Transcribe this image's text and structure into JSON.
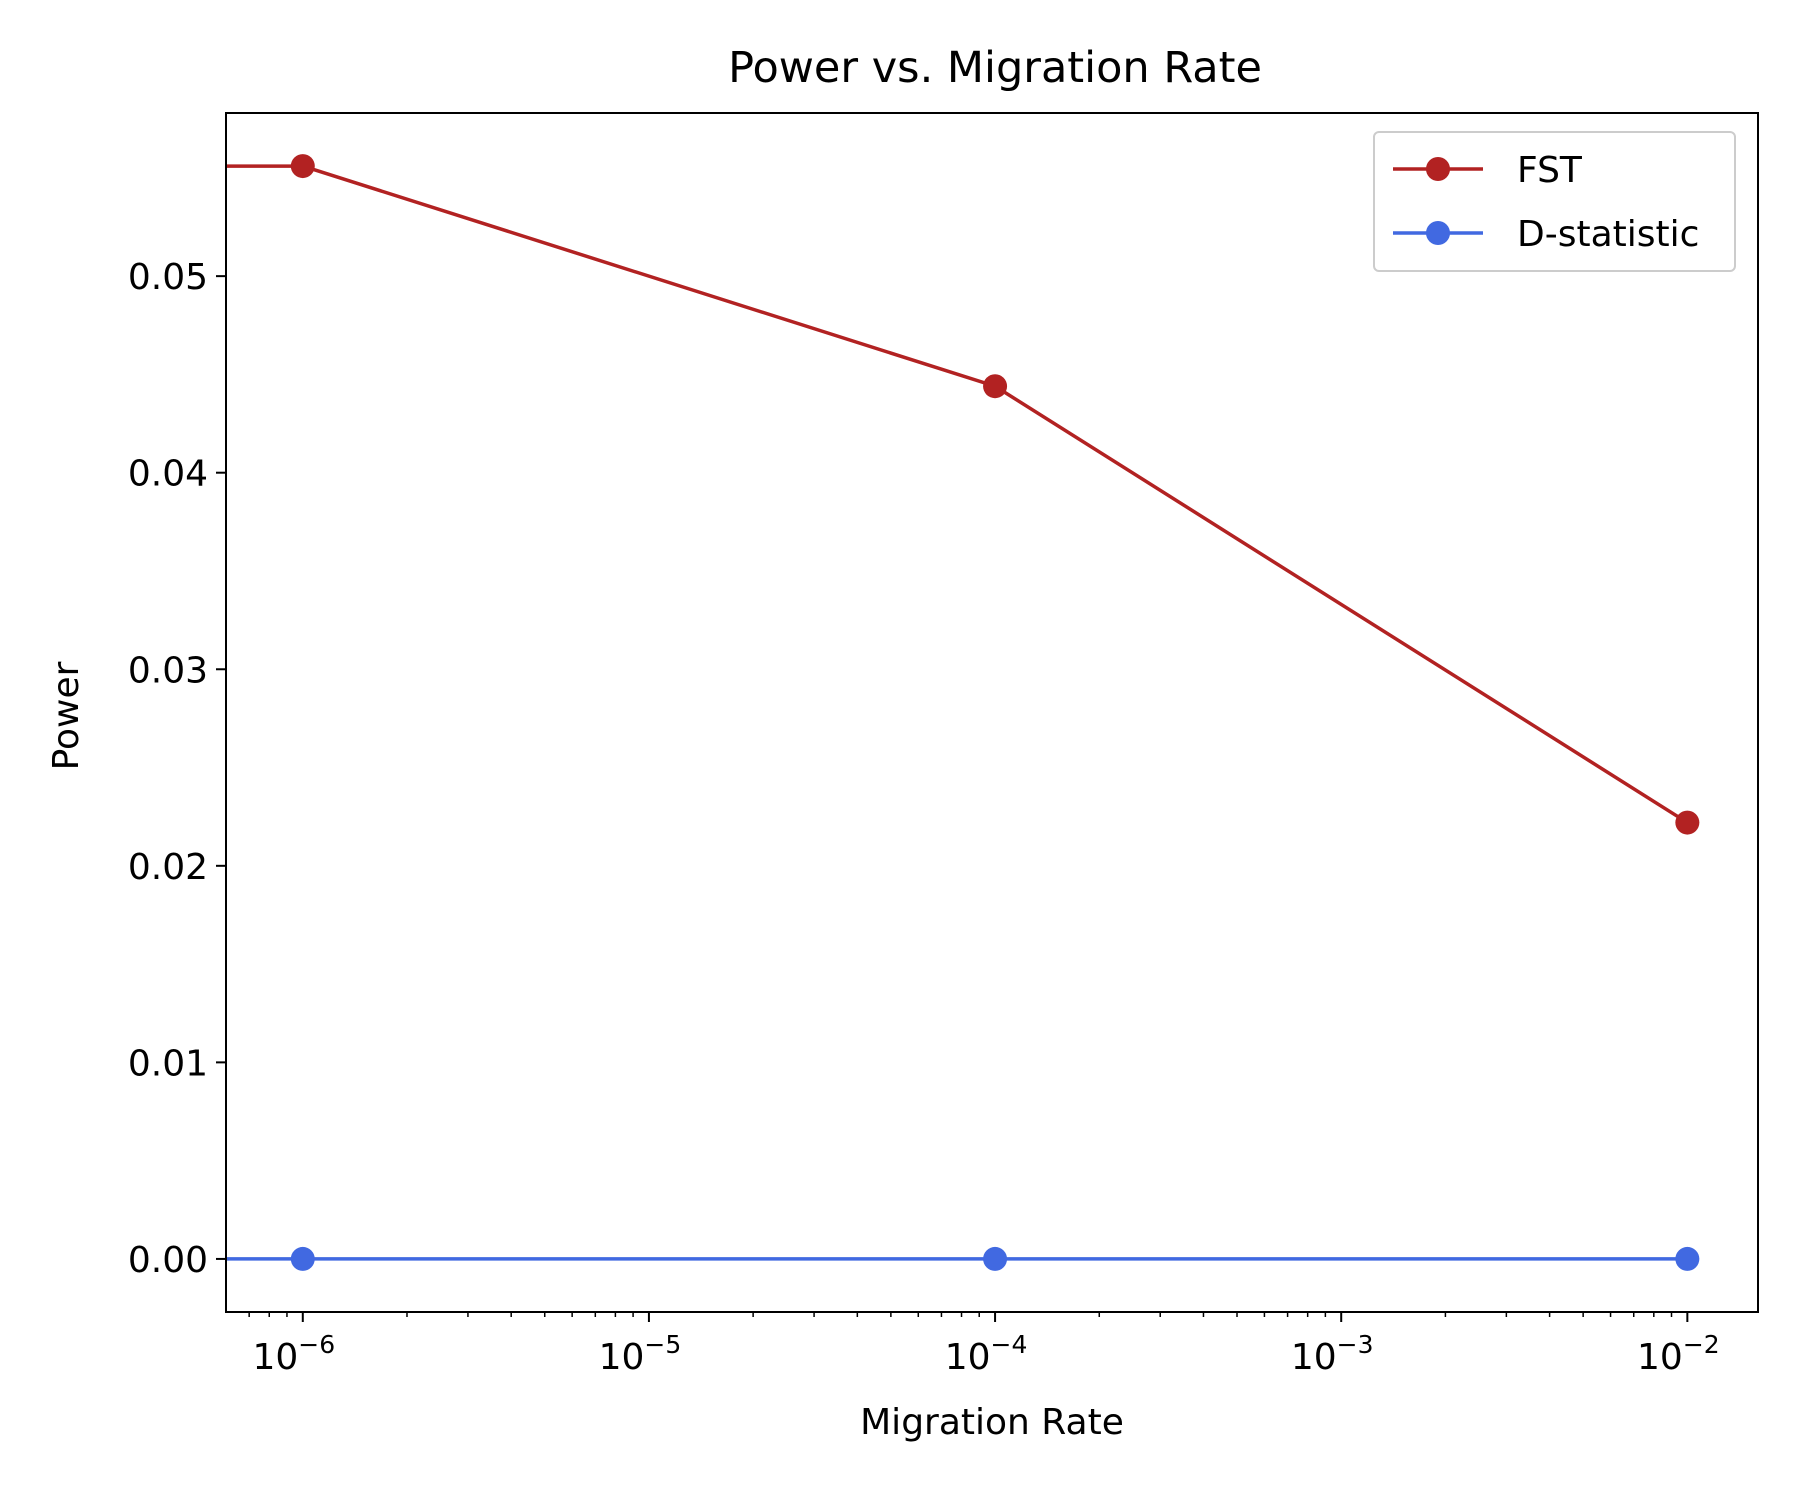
{
  "chart_data": {
    "type": "line",
    "title": "Power vs. Migration Rate",
    "xlabel": "Migration Rate",
    "ylabel": "Power",
    "xscale": "log",
    "xlim": [
      6e-07,
      0.016
    ],
    "ylim": [
      -0.0027,
      0.0583
    ],
    "x_ticks": [
      {
        "value": 1e-06,
        "base": "10",
        "exp": "−6"
      },
      {
        "value": 1e-05,
        "base": "10",
        "exp": "−5"
      },
      {
        "value": 0.0001,
        "base": "10",
        "exp": "−4"
      },
      {
        "value": 0.001,
        "base": "10",
        "exp": "−3"
      },
      {
        "value": 0.01,
        "base": "10",
        "exp": "−2"
      }
    ],
    "y_ticks": [
      {
        "value": 0.0,
        "label": "0.00"
      },
      {
        "value": 0.01,
        "label": "0.01"
      },
      {
        "value": 0.02,
        "label": "0.02"
      },
      {
        "value": 0.03,
        "label": "0.03"
      },
      {
        "value": 0.04,
        "label": "0.04"
      },
      {
        "value": 0.05,
        "label": "0.05"
      }
    ],
    "grid": false,
    "legend": {
      "position": "top-right"
    },
    "series": [
      {
        "name": "FST",
        "color": "#b22222",
        "points": [
          [
            0,
            0.0556
          ],
          [
            1e-06,
            0.0556
          ],
          [
            0.0001,
            0.0444
          ],
          [
            0.01,
            0.0222
          ]
        ],
        "markers": [
          [
            1e-06,
            0.0556
          ],
          [
            0.0001,
            0.0444
          ],
          [
            0.01,
            0.0222
          ]
        ]
      },
      {
        "name": "D-statistic",
        "color": "#4169e1",
        "points": [
          [
            0,
            0.0
          ],
          [
            1e-06,
            0.0
          ],
          [
            0.0001,
            0.0
          ],
          [
            0.01,
            0.0
          ]
        ],
        "markers": [
          [
            1e-06,
            0.0
          ],
          [
            0.0001,
            0.0
          ],
          [
            0.01,
            0.0
          ]
        ]
      }
    ]
  }
}
